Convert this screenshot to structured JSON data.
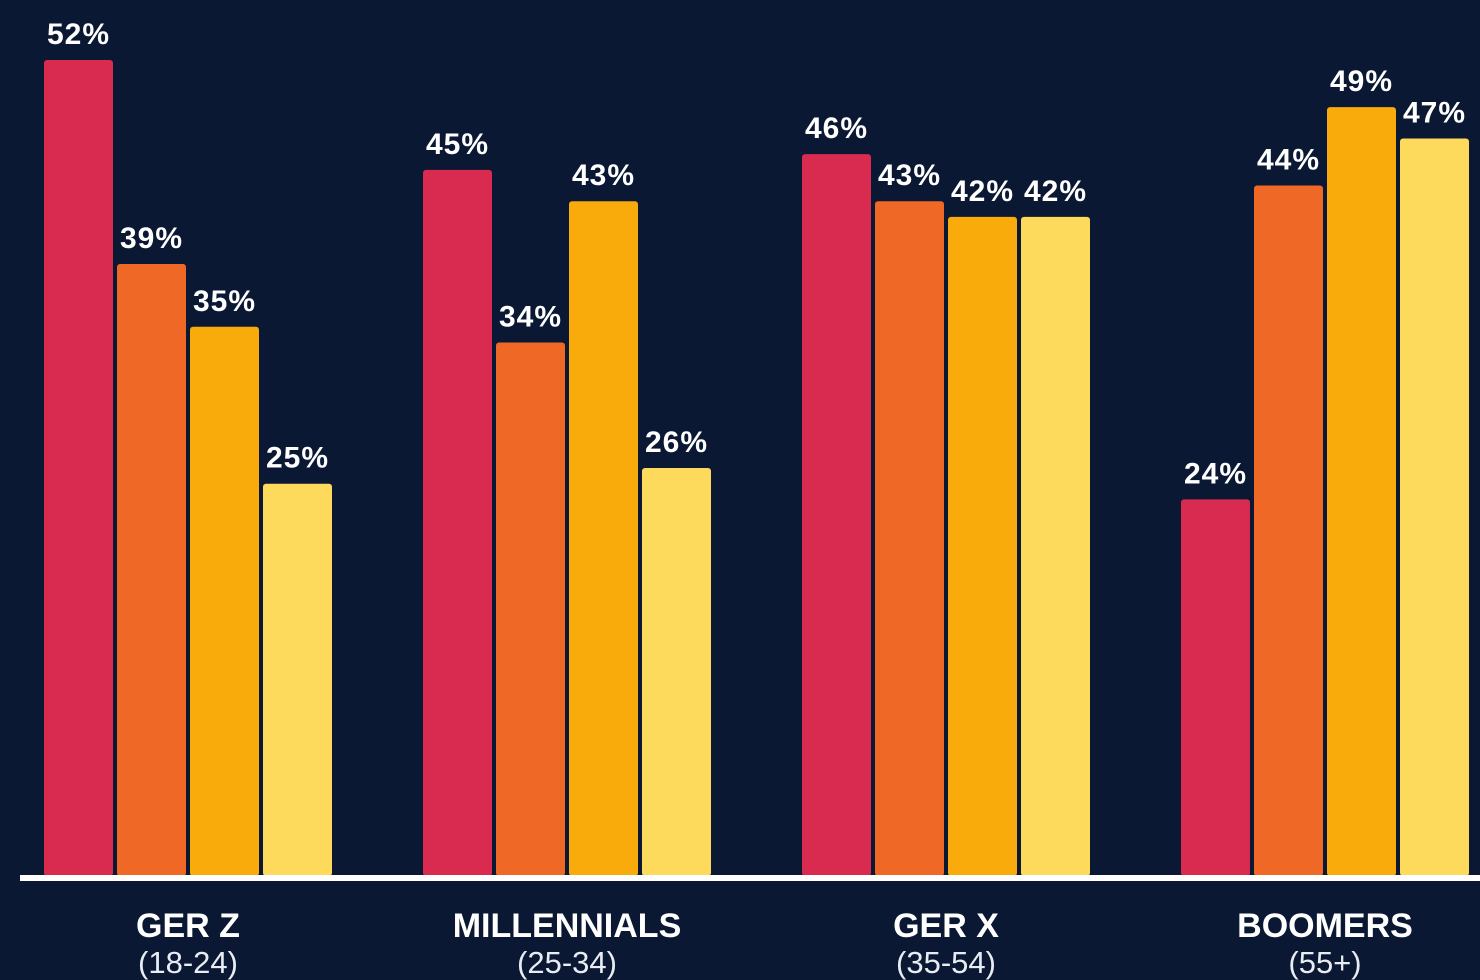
{
  "chart_data": {
    "type": "bar",
    "categories": [
      "GER Z",
      "MILLENNIALS",
      "GER X",
      "BOOMERS"
    ],
    "category_notes": [
      "(18-24)",
      "(25-34)",
      "(35-54)",
      "(55+)"
    ],
    "series": [
      {
        "color": "#d92a50",
        "values": [
          52,
          45,
          46,
          24
        ],
        "value_labels": [
          "52%",
          "45%",
          "46%",
          "24%"
        ]
      },
      {
        "color": "#f06826",
        "values": [
          39,
          34,
          43,
          44
        ],
        "value_labels": [
          "39%",
          "34%",
          "43%",
          "44%"
        ]
      },
      {
        "color": "#f8ab0b",
        "values": [
          35,
          43,
          42,
          49
        ],
        "value_labels": [
          "35%",
          "43%",
          "42%",
          "49%"
        ]
      },
      {
        "color": "#fdd95c",
        "values": [
          25,
          26,
          42,
          47
        ],
        "value_labels": [
          "25%",
          "26%",
          "42%",
          "47%"
        ]
      }
    ]
  }
}
